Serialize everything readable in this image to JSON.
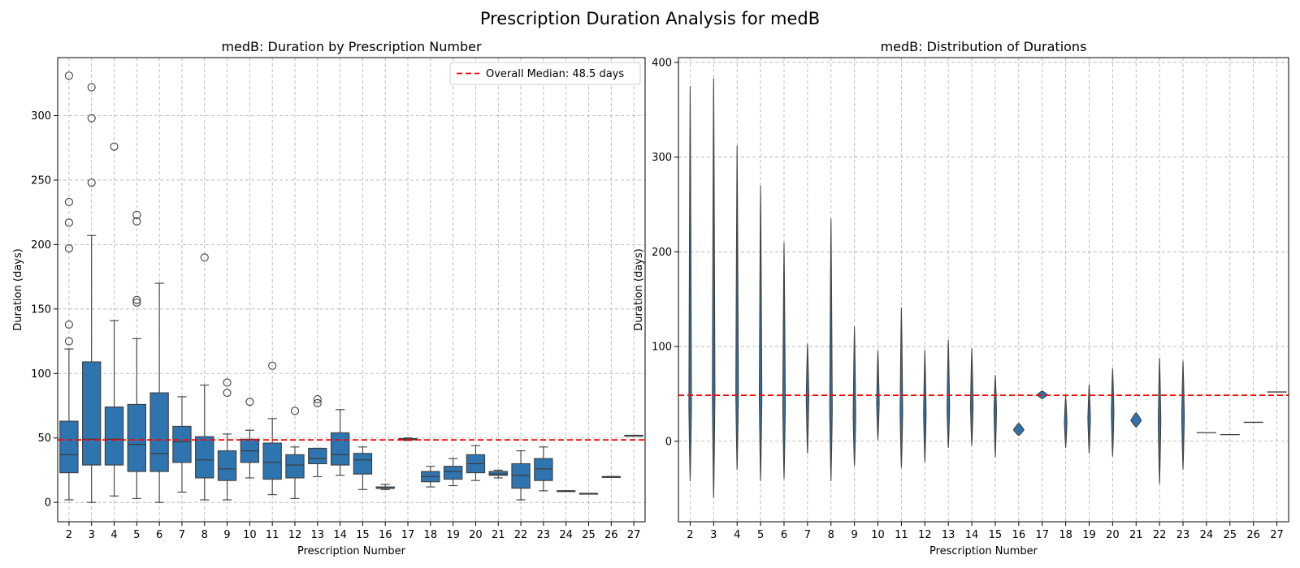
{
  "figure": {
    "title": "Prescription Duration Analysis for medB"
  },
  "chart_data": [
    {
      "type": "box",
      "title": "medB: Duration by Prescription Number",
      "xlabel": "Prescription Number",
      "ylabel": "Duration (days)",
      "categories": [
        "2",
        "3",
        "4",
        "5",
        "6",
        "7",
        "8",
        "9",
        "10",
        "11",
        "12",
        "13",
        "14",
        "15",
        "16",
        "17",
        "18",
        "19",
        "20",
        "21",
        "22",
        "23",
        "24",
        "25",
        "26",
        "27"
      ],
      "ylim": [
        -15,
        345
      ],
      "yticks": [
        0,
        50,
        100,
        150,
        200,
        250,
        300
      ],
      "grid": true,
      "color": "#2e75b0",
      "boxes": [
        {
          "min": 2,
          "q1": 23,
          "median": 37,
          "q3": 63,
          "max": 119,
          "outliers": [
            125,
            138,
            197,
            217,
            233,
            331
          ]
        },
        {
          "min": 0,
          "q1": 29,
          "median": 49,
          "q3": 109,
          "max": 207,
          "outliers": [
            248,
            298,
            322
          ]
        },
        {
          "min": 5,
          "q1": 29,
          "median": 49,
          "q3": 74,
          "max": 141,
          "outliers": [
            276
          ]
        },
        {
          "min": 3,
          "q1": 24,
          "median": 45,
          "q3": 76,
          "max": 127,
          "outliers": [
            155,
            157,
            218,
            223
          ]
        },
        {
          "min": 0,
          "q1": 24,
          "median": 38,
          "q3": 85,
          "max": 170,
          "outliers": []
        },
        {
          "min": 8,
          "q1": 31,
          "median": 47,
          "q3": 59,
          "max": 82,
          "outliers": []
        },
        {
          "min": 2,
          "q1": 19,
          "median": 33,
          "q3": 51,
          "max": 91,
          "outliers": [
            190
          ]
        },
        {
          "min": 2,
          "q1": 17,
          "median": 26,
          "q3": 40,
          "max": 53,
          "outliers": [
            85,
            93
          ]
        },
        {
          "min": 19,
          "q1": 31,
          "median": 40,
          "q3": 49,
          "max": 56,
          "outliers": [
            78
          ]
        },
        {
          "min": 6,
          "q1": 18,
          "median": 31,
          "q3": 46,
          "max": 65,
          "outliers": [
            106
          ]
        },
        {
          "min": 3,
          "q1": 19,
          "median": 29,
          "q3": 37,
          "max": 43,
          "outliers": [
            71
          ]
        },
        {
          "min": 20,
          "q1": 30,
          "median": 34,
          "q3": 42,
          "max": 42,
          "outliers": [
            77,
            80
          ]
        },
        {
          "min": 21,
          "q1": 29,
          "median": 37,
          "q3": 54,
          "max": 72,
          "outliers": []
        },
        {
          "min": 10,
          "q1": 22,
          "median": 33,
          "q3": 38,
          "max": 43,
          "outliers": []
        },
        {
          "min": 10,
          "q1": 11,
          "median": 11,
          "q3": 12,
          "max": 14,
          "outliers": []
        },
        {
          "min": 48,
          "q1": 48.5,
          "median": 49,
          "q3": 49.5,
          "max": 50,
          "outliers": []
        },
        {
          "min": 12,
          "q1": 16,
          "median": 20,
          "q3": 24,
          "max": 28,
          "outliers": []
        },
        {
          "min": 13,
          "q1": 18,
          "median": 24,
          "q3": 28,
          "max": 34,
          "outliers": []
        },
        {
          "min": 17,
          "q1": 23,
          "median": 30,
          "q3": 37,
          "max": 44,
          "outliers": []
        },
        {
          "min": 19,
          "q1": 21,
          "median": 22,
          "q3": 24,
          "max": 25,
          "outliers": []
        },
        {
          "min": 2,
          "q1": 11,
          "median": 21,
          "q3": 30,
          "max": 40,
          "outliers": []
        },
        {
          "min": 9,
          "q1": 17,
          "median": 26,
          "q3": 34,
          "max": 43,
          "outliers": []
        },
        {
          "min": 9,
          "q1": 9,
          "median": 9,
          "q3": 9,
          "max": 9,
          "outliers": []
        },
        {
          "min": 7,
          "q1": 7,
          "median": 7,
          "q3": 7,
          "max": 7,
          "outliers": []
        },
        {
          "min": 20,
          "q1": 20,
          "median": 20,
          "q3": 20,
          "max": 20,
          "outliers": []
        },
        {
          "min": 52,
          "q1": 52,
          "median": 52,
          "q3": 52,
          "max": 52,
          "outliers": []
        }
      ],
      "reference_line": {
        "value": 48.5,
        "color": "#ff0000",
        "label": "Overall Median: 48.5 days"
      },
      "legend": "top-right"
    },
    {
      "type": "violin",
      "title": "medB: Distribution of Durations",
      "xlabel": "Prescription Number",
      "ylabel": "Duration (days)",
      "categories": [
        "2",
        "3",
        "4",
        "5",
        "6",
        "7",
        "8",
        "9",
        "10",
        "11",
        "12",
        "13",
        "14",
        "15",
        "16",
        "17",
        "18",
        "19",
        "20",
        "21",
        "22",
        "23",
        "24",
        "25",
        "26",
        "27"
      ],
      "ylim": [
        -85,
        405
      ],
      "yticks": [
        0,
        100,
        200,
        300,
        400
      ],
      "grid": true,
      "color": "#2e75b0",
      "violins": [
        {
          "min": -42,
          "max": 375,
          "peak": 37
        },
        {
          "min": -60,
          "max": 383,
          "peak": 49
        },
        {
          "min": -30,
          "max": 312,
          "peak": 49
        },
        {
          "min": -42,
          "max": 270,
          "peak": 45
        },
        {
          "min": -40,
          "max": 210,
          "peak": 38
        },
        {
          "min": -13,
          "max": 103,
          "peak": 47
        },
        {
          "min": -42,
          "max": 235,
          "peak": 33
        },
        {
          "min": -26,
          "max": 121,
          "peak": 26
        },
        {
          "min": 1,
          "max": 96,
          "peak": 40
        },
        {
          "min": -28,
          "max": 141,
          "peak": 31
        },
        {
          "min": -22,
          "max": 96,
          "peak": 29
        },
        {
          "min": -7,
          "max": 107,
          "peak": 34
        },
        {
          "min": -5,
          "max": 98,
          "peak": 37
        },
        {
          "min": -17,
          "max": 70,
          "peak": 33
        },
        {
          "min": 6,
          "max": 19,
          "peak": 12
        },
        {
          "min": 45,
          "max": 53,
          "peak": 49
        },
        {
          "min": -7,
          "max": 48,
          "peak": 20
        },
        {
          "min": -13,
          "max": 60,
          "peak": 24
        },
        {
          "min": -16,
          "max": 77,
          "peak": 30
        },
        {
          "min": 15,
          "max": 30,
          "peak": 22
        },
        {
          "min": -45,
          "max": 88,
          "peak": 21
        },
        {
          "min": -30,
          "max": 85,
          "peak": 26
        },
        {
          "min": 9,
          "max": 9,
          "peak": 9
        },
        {
          "min": 7,
          "max": 7,
          "peak": 7
        },
        {
          "min": 20,
          "max": 20,
          "peak": 20
        },
        {
          "min": 52,
          "max": 52,
          "peak": 52
        }
      ],
      "reference_line": {
        "value": 48.5,
        "color": "#ff0000"
      }
    }
  ]
}
